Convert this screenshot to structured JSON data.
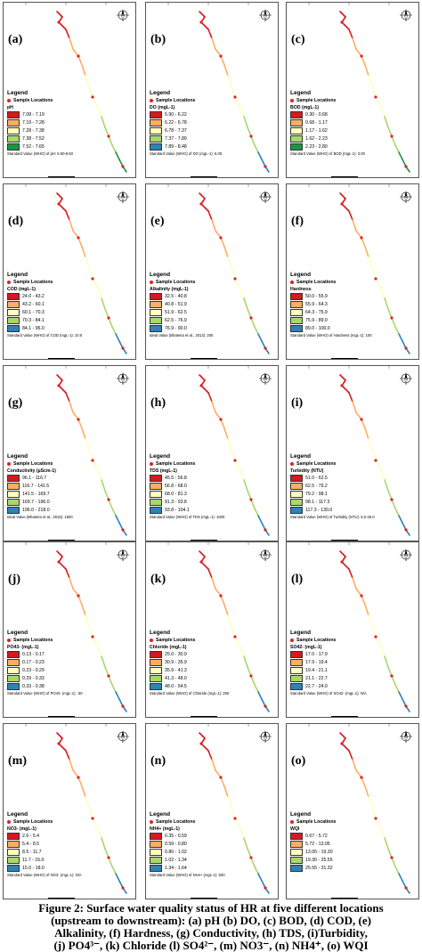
{
  "panels": [
    {
      "label": "(a)",
      "param": "pH",
      "classes": [
        "7.08 - 7.19",
        "7.19 - 7.28",
        "7.28 - 7.38",
        "7.38 - 7.52",
        "7.52 - 7.65"
      ],
      "colors": [
        "#d7191c",
        "#fdae61",
        "#ffffbf",
        "#a6d96a",
        "#1a9641"
      ],
      "standard": "Standard Value (WHO) of pH: 6.50-8.50"
    },
    {
      "label": "(b)",
      "param": "DO (mgL-1)",
      "classes": [
        "5.90 - 6.22",
        "6.22 - 6.78",
        "6.78 - 7.37",
        "7.37 - 7.89",
        "7.89 - 8.48"
      ],
      "colors": [
        "#d7191c",
        "#fdae61",
        "#ffffbf",
        "#a6d96a",
        "#2b83ba"
      ],
      "standard": "Standard Value (WHO) of DO (mgL-1): 6.00"
    },
    {
      "label": "(c)",
      "param": "BOD (mgL-1)",
      "classes": [
        "0.30 - 0.68",
        "0.68 - 1.17",
        "1.17 - 1.62",
        "1.62 - 2.23",
        "2.23 - 2.80"
      ],
      "colors": [
        "#d7191c",
        "#fdae61",
        "#ffffbf",
        "#a6d96a",
        "#1a9641"
      ],
      "standard": "Standard Value (WHO) of BOD (mgL-1): 3.00"
    },
    {
      "label": "(d)",
      "param": "COD (mgL-1)",
      "classes": [
        "24.0 - 43.2",
        "43.2 - 60.1",
        "60.1 - 70.3",
        "70.3 - 84.1",
        "84.1 - 96.0"
      ],
      "colors": [
        "#d7191c",
        "#fdae61",
        "#ffffbf",
        "#a6d96a",
        "#2b83ba"
      ],
      "standard": "Standard Value (WHO) of COD (mgL-1): 10.0"
    },
    {
      "label": "(e)",
      "param": "Alkalinity (mgL-1)",
      "classes": [
        "32.5 - 40.8",
        "40.8 - 51.9",
        "51.9 - 62.5",
        "62.5 - 76.9",
        "76.9 - 90.0"
      ],
      "colors": [
        "#d7191c",
        "#fdae61",
        "#ffffbf",
        "#a6d96a",
        "#2b83ba"
      ],
      "standard": "Ideal Value (Bhateria et al., 2013): 200"
    },
    {
      "label": "(f)",
      "param": "Hardness",
      "classes": [
        "50.0 - 55.9",
        "55.9 - 64.3",
        "64.3 - 75.9",
        "75.9 - 89.0",
        "89.0 - 100.0"
      ],
      "colors": [
        "#d7191c",
        "#fdae61",
        "#ffffbf",
        "#a6d96a",
        "#2b83ba"
      ],
      "standard": "Standard Value (WHO) of Hardness (mgL-1): 100"
    },
    {
      "label": "(g)",
      "param": "Conductivity (µScm-1)",
      "classes": [
        "96.1 - 116.7",
        "116.7 - 141.5",
        "141.5 - 169.7",
        "169.7 - 196.0",
        "196.0 - 218.0"
      ],
      "colors": [
        "#d7191c",
        "#fdae61",
        "#ffffbf",
        "#a6d96a",
        "#2b83ba"
      ],
      "standard": "Ideal Value (Bhateria et al., 2016): 1500"
    },
    {
      "label": "(h)",
      "param": "TDS (mgL-1)",
      "classes": [
        "45.5 - 56.8",
        "56.8 - 68.0",
        "68.0 - 81.3",
        "81.3 - 93.8",
        "93.8 - 104.1"
      ],
      "colors": [
        "#d7191c",
        "#fdae61",
        "#ffffbf",
        "#a6d96a",
        "#2b83ba"
      ],
      "standard": "Standard Value (WHO) of TDS (mgL-1): 1000"
    },
    {
      "label": "(i)",
      "param": "Turbidity (NTU)",
      "classes": [
        "51.0 - 62.5",
        "62.5 - 79.2",
        "79.2 - 98.1",
        "98.1 - 117.3",
        "117.3 - 130.0"
      ],
      "colors": [
        "#d7191c",
        "#fdae61",
        "#ffffbf",
        "#a6d96a",
        "#2b83ba"
      ],
      "standard": "Standard Value (WHO) of Turbidity (NTU): 5.0-25.0"
    },
    {
      "label": "(j)",
      "param": "PO43- (mgL-1)",
      "classes": [
        "0.13 - 0.17",
        "0.17 - 0.23",
        "0.23 - 0.29",
        "0.29 - 0.33",
        "0.33 - 0.38"
      ],
      "colors": [
        "#d7191c",
        "#fdae61",
        "#ffffbf",
        "#a6d96a",
        "#2b83ba"
      ],
      "standard": "Standard Value (WHO) of PO43- (mgL-1): .50"
    },
    {
      "label": "(k)",
      "param": "Chloride (mgL-1)",
      "classes": [
        "25.0 - 30.9",
        "30.9 - 35.9",
        "35.9 - 41.3",
        "41.3 - 48.0",
        "48.0 - 54.5"
      ],
      "colors": [
        "#d7191c",
        "#fdae61",
        "#ffffbf",
        "#a6d96a",
        "#2b83ba"
      ],
      "standard": "Standard Value (WHO) of Chloride (mgL-1): 250"
    },
    {
      "label": "(l)",
      "param": "SO42- (mgL-1)",
      "classes": [
        "17.0 - 17.9",
        "17.9 - 19.4",
        "19.4 - 21.1",
        "21.1 - 22.7",
        "22.7 - 24.0"
      ],
      "colors": [
        "#d7191c",
        "#fdae61",
        "#ffffbf",
        "#a6d96a",
        "#2b83ba"
      ],
      "standard": "Standard Value (WHO) of SO42- (mgL-1): N/A"
    },
    {
      "label": "(m)",
      "param": "NO3- (mgL-1)",
      "classes": [
        "2.6 - 5.4",
        "5.4 - 8.5",
        "8.5 - 11.7",
        "11.7 - 15.0",
        "15.0 - 18.0"
      ],
      "colors": [
        "#d7191c",
        "#fdae61",
        "#ffffbf",
        "#a6d96a",
        "#2b83ba"
      ],
      "standard": "Standard Value (WHO) of NO3- (mgL-1): N/A"
    },
    {
      "label": "(n)",
      "param": "NH4+ (mgL-1)",
      "classes": [
        "0.35 - 0.59",
        "0.59 - 0.80",
        "0.80 - 1.02",
        "1.02 - 1.34",
        "1.34 - 1.64"
      ],
      "colors": [
        "#d7191c",
        "#fdae61",
        "#ffffbf",
        "#a6d96a",
        "#2b83ba"
      ],
      "standard": "Standard Value (WHO) of NH4+ (mgL-1): 500"
    },
    {
      "label": "(o)",
      "param": "WQI",
      "classes": [
        "0.67 - 5.72",
        "5.72 - 13.05",
        "13.05 - 19.30",
        "19.30 - 25.55",
        "25.55 - 31.32"
      ],
      "colors": [
        "#d7191c",
        "#fdae61",
        "#ffffbf",
        "#a6d96a",
        "#2b83ba"
      ],
      "standard": ""
    }
  ],
  "legend_title": "Legend",
  "sample_label": "Sample Locations",
  "caption": {
    "line1": "Figure 2: Surface water quality status of HR at five different locations",
    "line2": "(upstream to downstream): (a) pH (b) DO, (c) BOD, (d) COD, (e)",
    "line3": "Alkalinity, (f) Hardness, (g) Conductivity, (h) TDS, (i)Turbidity,",
    "line4": "(j) PO4³⁻, (k) Chloride (l) SO4²⁻, (m) NO3⁻, (n) NH4⁺, (o) WQI"
  }
}
